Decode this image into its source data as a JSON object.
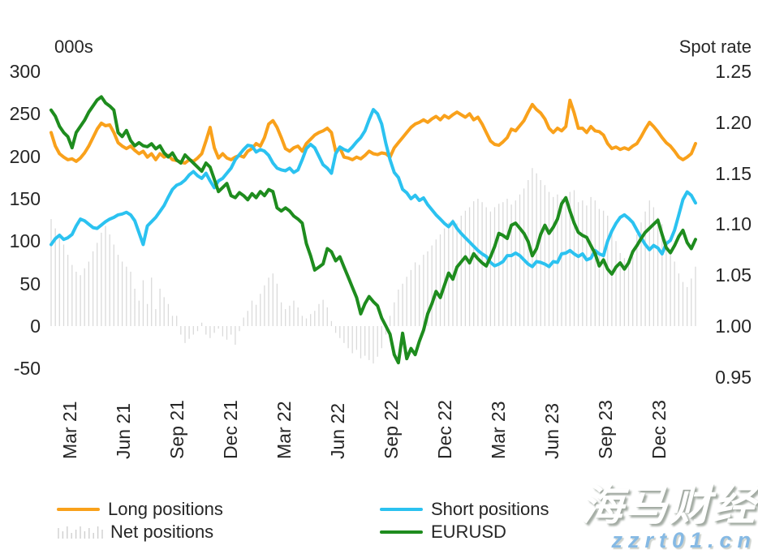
{
  "chart_data": {
    "type": "mixed",
    "title": "",
    "left_axis": {
      "title": "000s",
      "ticks": [
        "300",
        "250",
        "200",
        "150",
        "100",
        "50",
        "0",
        "-50"
      ],
      "range": [
        -50,
        300
      ]
    },
    "right_axis": {
      "title": "Spot rate",
      "ticks": [
        "1.25",
        "1.20",
        "1.15",
        "1.10",
        "1.05",
        "1.00",
        "0.95"
      ],
      "range": [
        0.95,
        1.25
      ]
    },
    "x_tick_labels": [
      "Mar 21",
      "Jun 21",
      "Sep 21",
      "Dec 21",
      "Mar 22",
      "Jun 22",
      "Sep 22",
      "Dec 22",
      "Mar 23",
      "Jun 23",
      "Sep 23",
      "Dec 23"
    ],
    "x_frequency": "weekly",
    "grid": false,
    "legend_position": "bottom",
    "series": [
      {
        "name": "Net positions",
        "type": "bar",
        "axis": "left",
        "color": "#DADADA",
        "values": [
          126,
          115,
          108,
          96,
          84,
          72,
          64,
          60,
          68,
          76,
          88,
          98,
          110,
          118,
          108,
          96,
          84,
          76,
          70,
          64,
          44,
          30,
          54,
          26,
          57,
          20,
          44,
          34,
          26,
          12,
          12,
          -10,
          -20,
          -15,
          -10,
          -6,
          4,
          -10,
          -14,
          -8,
          -3,
          -12,
          -16,
          -10,
          -22,
          -6,
          10,
          18,
          30,
          25,
          38,
          48,
          57,
          62,
          50,
          28,
          20,
          24,
          30,
          22,
          12,
          9,
          14,
          18,
          26,
          31,
          22,
          6,
          -8,
          -14,
          -20,
          -26,
          -32,
          -28,
          -38,
          -35,
          -40,
          -44,
          -36,
          -26,
          -10,
          12,
          28,
          43,
          50,
          58,
          66,
          75,
          72,
          84,
          88,
          95,
          102,
          108,
          115,
          122,
          126,
          121,
          130,
          136,
          140,
          147,
          150,
          146,
          140,
          135,
          140,
          144,
          146,
          150,
          143,
          148,
          155,
          162,
          172,
          186,
          180,
          172,
          166,
          158,
          152,
          155,
          150,
          148,
          158,
          160,
          146,
          148,
          142,
          152,
          148,
          138,
          136,
          130,
          112,
          100,
          86,
          80,
          76,
          82,
          108,
          122,
          135,
          148,
          140,
          128,
          120,
          102,
          88,
          76,
          62,
          52,
          46,
          56,
          70
        ]
      },
      {
        "name": "Long positions",
        "type": "line",
        "axis": "left",
        "color": "#F9A11B",
        "values": [
          228,
          212,
          203,
          199,
          196,
          197,
          194,
          198,
          204,
          212,
          222,
          232,
          239,
          236,
          237,
          228,
          216,
          212,
          209,
          212,
          207,
          203,
          206,
          199,
          203,
          196,
          203,
          199,
          201,
          196,
          195,
          193,
          192,
          196,
          194,
          198,
          203,
          218,
          234,
          210,
          198,
          203,
          198,
          196,
          199,
          201,
          199,
          206,
          209,
          215,
          212,
          222,
          238,
          242,
          234,
          222,
          209,
          206,
          210,
          212,
          206,
          215,
          220,
          225,
          228,
          230,
          233,
          228,
          206,
          210,
          199,
          198,
          196,
          199,
          197,
          201,
          206,
          203,
          202,
          204,
          203,
          199,
          210,
          216,
          222,
          228,
          234,
          238,
          240,
          243,
          240,
          244,
          247,
          243,
          248,
          245,
          249,
          252,
          249,
          246,
          250,
          243,
          246,
          238,
          228,
          218,
          214,
          213,
          217,
          222,
          232,
          230,
          236,
          242,
          252,
          261,
          255,
          251,
          244,
          233,
          228,
          233,
          230,
          235,
          266,
          251,
          233,
          233,
          228,
          235,
          230,
          229,
          225,
          215,
          209,
          211,
          208,
          210,
          208,
          212,
          215,
          223,
          232,
          240,
          235,
          229,
          222,
          216,
          212,
          206,
          199,
          196,
          199,
          203,
          215
        ]
      },
      {
        "name": "Short positions",
        "type": "line",
        "axis": "left",
        "color": "#2BC2F0",
        "values": [
          96,
          103,
          107,
          102,
          104,
          108,
          118,
          126,
          124,
          120,
          116,
          115,
          119,
          123,
          126,
          128,
          131,
          132,
          134,
          131,
          124,
          110,
          96,
          118,
          123,
          128,
          135,
          142,
          152,
          161,
          166,
          168,
          172,
          178,
          182,
          177,
          174,
          180,
          171,
          163,
          171,
          174,
          180,
          186,
          196,
          202,
          208,
          213,
          212,
          205,
          208,
          206,
          201,
          192,
          186,
          184,
          183,
          186,
          181,
          184,
          196,
          209,
          214,
          210,
          200,
          190,
          186,
          180,
          203,
          211,
          208,
          206,
          211,
          217,
          222,
          230,
          243,
          255,
          250,
          238,
          215,
          196,
          181,
          175,
          161,
          157,
          150,
          154,
          148,
          151,
          143,
          137,
          131,
          126,
          121,
          117,
          123,
          115,
          109,
          104,
          99,
          94,
          89,
          85,
          82,
          75,
          71,
          73,
          76,
          83,
          83,
          86,
          83,
          78,
          73,
          70,
          76,
          75,
          73,
          70,
          76,
          75,
          85,
          86,
          89,
          85,
          82,
          85,
          78,
          80,
          89,
          85,
          83,
          100,
          112,
          121,
          128,
          131,
          127,
          122,
          113,
          104,
          96,
          90,
          95,
          92,
          85,
          97,
          101,
          113,
          131,
          149,
          158,
          154,
          145
        ]
      },
      {
        "name": "EURUSD",
        "type": "line",
        "axis": "right",
        "color": "#1E8C1E",
        "values": [
          1.212,
          1.206,
          1.196,
          1.19,
          1.186,
          1.175,
          1.19,
          1.196,
          1.202,
          1.21,
          1.216,
          1.222,
          1.225,
          1.219,
          1.216,
          1.212,
          1.19,
          1.186,
          1.192,
          1.182,
          1.177,
          1.18,
          1.177,
          1.176,
          1.179,
          1.174,
          1.177,
          1.17,
          1.166,
          1.17,
          1.163,
          1.16,
          1.168,
          1.164,
          1.16,
          1.156,
          1.152,
          1.16,
          1.156,
          1.144,
          1.132,
          1.136,
          1.14,
          1.128,
          1.126,
          1.131,
          1.128,
          1.124,
          1.13,
          1.126,
          1.132,
          1.128,
          1.134,
          1.132,
          1.116,
          1.113,
          1.116,
          1.113,
          1.108,
          1.105,
          1.101,
          1.081,
          1.069,
          1.055,
          1.058,
          1.061,
          1.076,
          1.073,
          1.064,
          1.068,
          1.058,
          1.048,
          1.038,
          1.028,
          1.012,
          1.022,
          1.029,
          1.024,
          1.02,
          1.008,
          1.0,
          0.992,
          0.972,
          0.964,
          0.993,
          0.968,
          0.978,
          0.972,
          0.985,
          0.996,
          1.012,
          1.022,
          1.034,
          1.028,
          1.04,
          1.052,
          1.046,
          1.058,
          1.063,
          1.068,
          1.062,
          1.071,
          1.066,
          1.062,
          1.059,
          1.068,
          1.078,
          1.091,
          1.089,
          1.086,
          1.099,
          1.101,
          1.096,
          1.091,
          1.083,
          1.069,
          1.076,
          1.09,
          1.099,
          1.091,
          1.097,
          1.105,
          1.12,
          1.126,
          1.113,
          1.101,
          1.092,
          1.089,
          1.087,
          1.079,
          1.071,
          1.059,
          1.065,
          1.056,
          1.051,
          1.058,
          1.062,
          1.056,
          1.062,
          1.073,
          1.079,
          1.086,
          1.092,
          1.096,
          1.1,
          1.104,
          1.09,
          1.077,
          1.072,
          1.079,
          1.088,
          1.094,
          1.082,
          1.076,
          1.085
        ]
      }
    ]
  },
  "watermark": {
    "line1": "海马财经",
    "line2": "zzrt01.cn",
    "line2_color": "#85B9E4"
  }
}
